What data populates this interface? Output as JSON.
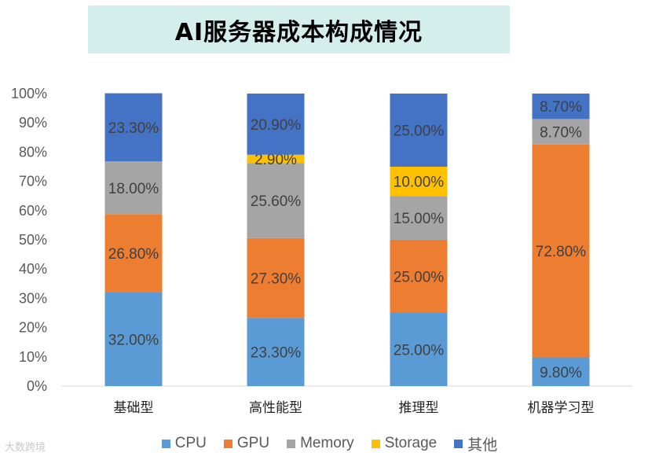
{
  "chart_data": {
    "type": "bar",
    "stacked": true,
    "title": "AI服务器成本构成情况",
    "categories": [
      "基础型",
      "高性能型",
      "推理型",
      "机器学习型"
    ],
    "series": [
      {
        "name": "CPU",
        "color": "#5b9bd5",
        "values": [
          32.0,
          23.3,
          25.0,
          9.8
        ],
        "labels": [
          "32.00%",
          "23.30%",
          "25.00%",
          "9.80%"
        ]
      },
      {
        "name": "GPU",
        "color": "#ed7d31",
        "values": [
          26.8,
          27.3,
          25.0,
          72.8
        ],
        "labels": [
          "26.80%",
          "27.30%",
          "25.00%",
          "72.80%"
        ]
      },
      {
        "name": "Memory",
        "color": "#a5a5a5",
        "values": [
          18.0,
          25.6,
          15.0,
          8.7
        ],
        "labels": [
          "18.00%",
          "25.60%",
          "15.00%",
          "8.70%"
        ]
      },
      {
        "name": "Storage",
        "color": "#ffc000",
        "values": [
          0,
          2.9,
          10.0,
          0
        ],
        "labels": [
          "",
          "2.90%",
          "10.00%",
          ""
        ]
      },
      {
        "name": "其他",
        "color": "#4472c4",
        "values": [
          23.3,
          20.9,
          25.0,
          8.7
        ],
        "labels": [
          "23.30%",
          "20.90%",
          "25.00%",
          "8.70%"
        ]
      }
    ],
    "ylim": [
      0,
      100
    ],
    "yticks": [
      "0%",
      "10%",
      "20%",
      "30%",
      "40%",
      "50%",
      "60%",
      "70%",
      "80%",
      "90%",
      "100%"
    ],
    "legend_position": "bottom",
    "grid": false
  },
  "watermark": "大数跨境"
}
